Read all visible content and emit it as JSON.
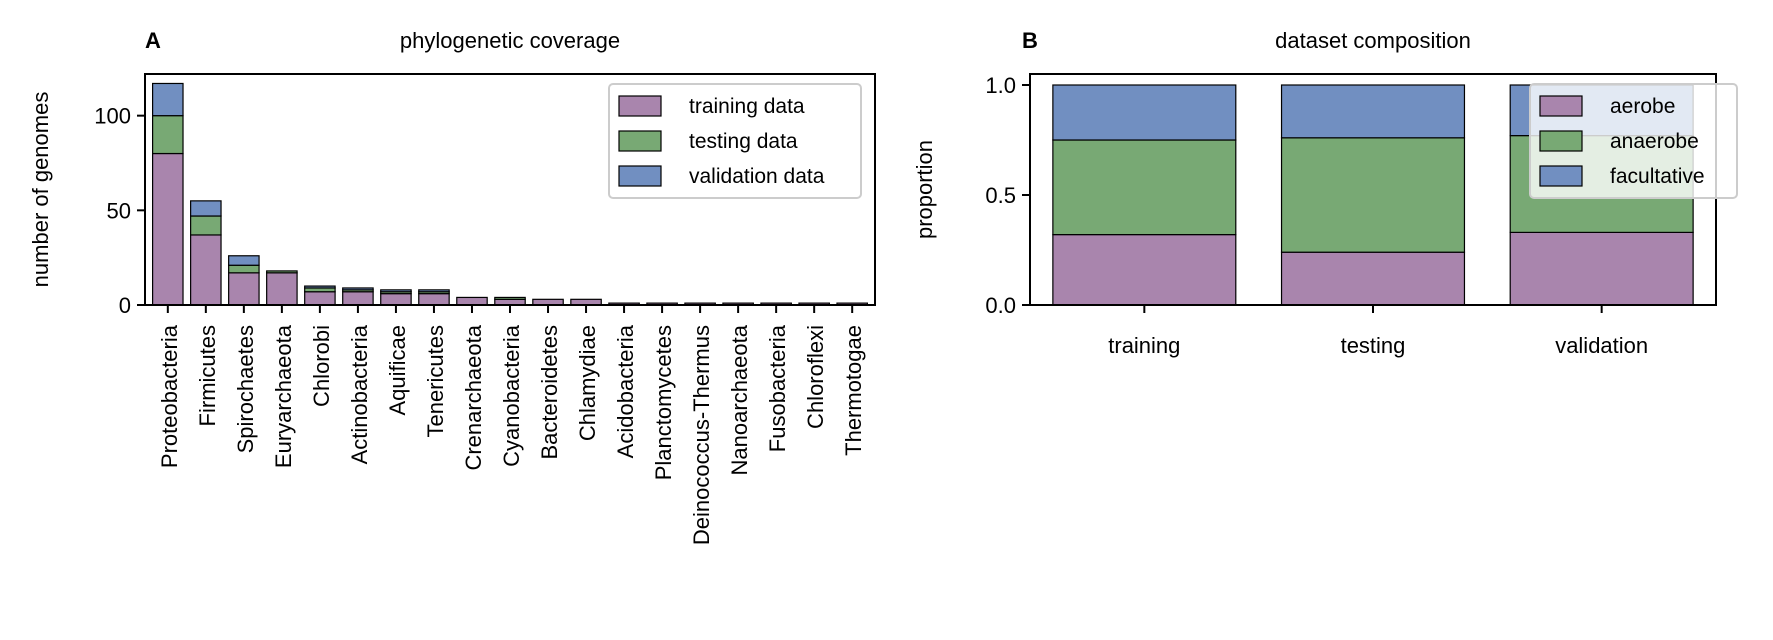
{
  "chart_data": [
    {
      "type": "bar",
      "stacked": true,
      "panel_letter": "A",
      "title": "phylogenetic coverage",
      "xlabel": "",
      "ylabel": "number of genomes",
      "ylim": [
        0,
        122
      ],
      "yticks": [
        0,
        50,
        100
      ],
      "grid": false,
      "legend_position": "top-right",
      "categories": [
        "Proteobacteria",
        "Firmicutes",
        "Spirochaetes",
        "Euryarchaeota",
        "Chlorobi",
        "Actinobacteria",
        "Aquificae",
        "Tenericutes",
        "Crenarchaeota",
        "Cyanobacteria",
        "Bacteroidetes",
        "Chlamydiae",
        "Acidobacteria",
        "Planctomycetes",
        "Deinococcus-Thermus",
        "Nanoarchaeota",
        "Fusobacteria",
        "Chloroflexi",
        "Thermotogae"
      ],
      "series": [
        {
          "name": "training data",
          "color": "#a985ad",
          "values": [
            80,
            37,
            17,
            17,
            7,
            7,
            6,
            6,
            4,
            3,
            3,
            3,
            1,
            1,
            1,
            1,
            1,
            1,
            1
          ]
        },
        {
          "name": "testing data",
          "color": "#78a974",
          "values": [
            20,
            10,
            4,
            1,
            2,
            1,
            1,
            1,
            0,
            1,
            0,
            0,
            0,
            0,
            0,
            0,
            0,
            0,
            0
          ]
        },
        {
          "name": "validation data",
          "color": "#718fc1",
          "values": [
            17,
            8,
            5,
            0,
            1,
            1,
            1,
            1,
            0,
            0,
            0,
            0,
            0,
            0,
            0,
            0,
            0,
            0,
            0
          ]
        }
      ]
    },
    {
      "type": "bar",
      "stacked": true,
      "panel_letter": "B",
      "title": "dataset composition",
      "xlabel": "",
      "ylabel": "proportion",
      "ylim": [
        0,
        1.05
      ],
      "yticks": [
        "0.0",
        "0.5",
        "1.0"
      ],
      "grid": false,
      "legend_position": "top-right",
      "categories": [
        "training",
        "testing",
        "validation"
      ],
      "series": [
        {
          "name": "aerobe",
          "color": "#a985ad",
          "values": [
            0.32,
            0.24,
            0.33
          ]
        },
        {
          "name": "anaerobe",
          "color": "#78a974",
          "values": [
            0.43,
            0.52,
            0.44
          ]
        },
        {
          "name": "facultative",
          "color": "#718fc1",
          "values": [
            0.25,
            0.24,
            0.23
          ]
        }
      ]
    }
  ]
}
